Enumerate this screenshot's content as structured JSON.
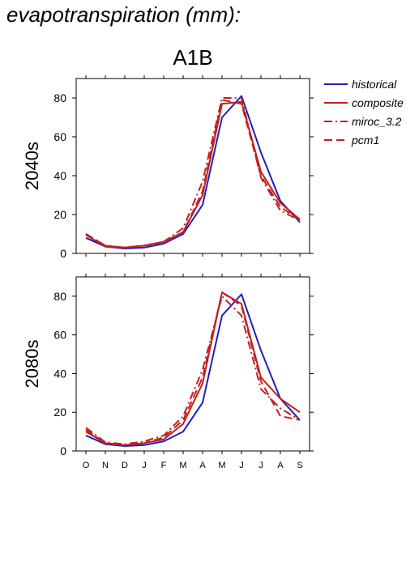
{
  "title": "evapotranspiration (mm):",
  "scenario": "A1B",
  "chart_data": [
    {
      "type": "line",
      "ylabel": "2040s",
      "ylim": [
        0,
        90
      ],
      "yticks": [
        0,
        20,
        40,
        60,
        80
      ],
      "categories": [
        "O",
        "N",
        "D",
        "J",
        "F",
        "M",
        "A",
        "M",
        "J",
        "J",
        "A",
        "S"
      ],
      "series": [
        {
          "name": "historical",
          "color": "#1f1fbf",
          "dash": "solid",
          "values": [
            8,
            3.5,
            2.5,
            3,
            5,
            10,
            25,
            70,
            81,
            52,
            27,
            16
          ]
        },
        {
          "name": "composite",
          "color": "#c41e1e",
          "dash": "solid",
          "values": [
            9.5,
            3.5,
            3,
            4,
            6,
            11,
            30,
            77,
            78,
            42,
            26,
            17.5
          ]
        },
        {
          "name": "miroc_3.2",
          "color": "#c41e1e",
          "dash": "dashdot",
          "values": [
            10,
            4,
            3,
            4,
            6,
            13,
            37,
            80,
            80,
            39,
            22,
            17
          ]
        },
        {
          "name": "pcm1",
          "color": "#c41e1e",
          "dash": "dash",
          "values": [
            10,
            4,
            3,
            4,
            5.5,
            11,
            32,
            79,
            77,
            40,
            24,
            17
          ]
        }
      ]
    },
    {
      "type": "line",
      "ylabel": "2080s",
      "ylim": [
        0,
        90
      ],
      "yticks": [
        0,
        20,
        40,
        60,
        80
      ],
      "categories": [
        "O",
        "N",
        "D",
        "J",
        "F",
        "M",
        "A",
        "M",
        "J",
        "J",
        "A",
        "S"
      ],
      "series": [
        {
          "name": "historical",
          "color": "#1f1fbf",
          "dash": "solid",
          "values": [
            8,
            3.5,
            2.5,
            3,
            5,
            10,
            25,
            70,
            81,
            52,
            27,
            16
          ]
        },
        {
          "name": "composite",
          "color": "#c41e1e",
          "dash": "solid",
          "values": [
            10,
            4,
            3,
            4,
            6,
            14,
            35,
            82,
            76,
            38,
            27,
            20
          ]
        },
        {
          "name": "miroc_3.2",
          "color": "#c41e1e",
          "dash": "dashdot",
          "values": [
            12,
            4.5,
            3.5,
            5,
            8,
            18,
            42,
            80,
            70,
            32,
            22,
            16
          ]
        },
        {
          "name": "pcm1",
          "color": "#c41e1e",
          "dash": "dash",
          "values": [
            11,
            4,
            3,
            4,
            7,
            16,
            38,
            82,
            75,
            36,
            18,
            16
          ]
        }
      ]
    }
  ]
}
